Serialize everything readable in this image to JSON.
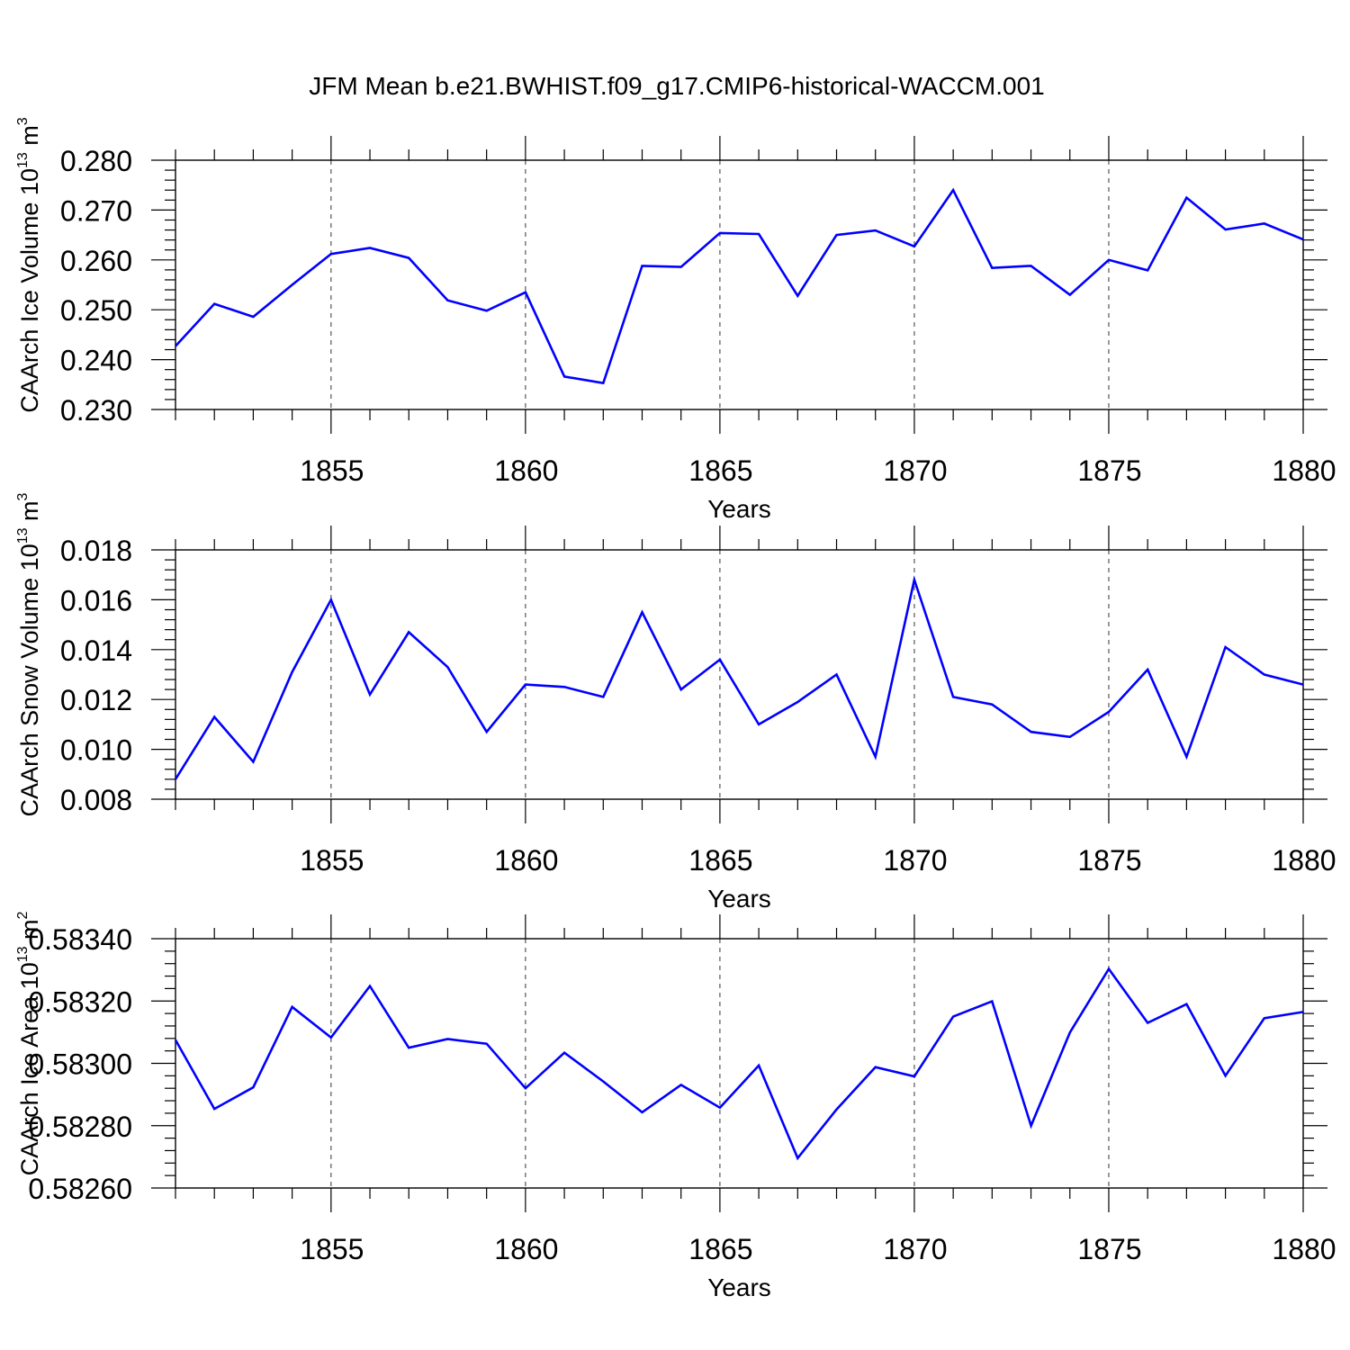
{
  "chart_data": {
    "title": "JFM Mean b.e21.BWHIST.f09_g17.CMIP6-historical-WACCM.001",
    "panels": [
      {
        "type": "line",
        "ylabel": {
          "main": "CAArch Ice Volume 10",
          "exp": "13",
          "unit": " m",
          "unit_exp": "3"
        },
        "xlabel": "Years",
        "xlim": [
          1851,
          1880
        ],
        "ylim": [
          0.23,
          0.28
        ],
        "yticks": [
          0.23,
          0.24,
          0.25,
          0.26,
          0.27,
          0.28
        ],
        "ytick_labels": [
          "0.230",
          "0.240",
          "0.250",
          "0.260",
          "0.270",
          "0.280"
        ],
        "y_minor_step": 0.002,
        "xticks": [
          1855,
          1860,
          1865,
          1870,
          1875,
          1880
        ],
        "xtick_labels": [
          "1855",
          "1860",
          "1865",
          "1870",
          "1875",
          "1880"
        ],
        "grid": "vertical dashed at major x ticks",
        "series": [
          {
            "name": "CAArch Ice Volume",
            "color": "#0000ff",
            "x": [
              1851,
              1852,
              1853,
              1854,
              1855,
              1856,
              1857,
              1858,
              1859,
              1860,
              1861,
              1862,
              1863,
              1864,
              1865,
              1866,
              1867,
              1868,
              1869,
              1870,
              1871,
              1872,
              1873,
              1874,
              1875,
              1876,
              1877,
              1878,
              1879,
              1880
            ],
            "y": [
              0.2427,
              0.2512,
              0.2486,
              0.255,
              0.2612,
              0.2624,
              0.2604,
              0.2519,
              0.2498,
              0.2535,
              0.2366,
              0.2353,
              0.2588,
              0.2586,
              0.2654,
              0.2652,
              0.2528,
              0.265,
              0.2659,
              0.2627,
              0.274,
              0.2584,
              0.2588,
              0.253,
              0.26,
              0.2579,
              0.2725,
              0.2661,
              0.2673,
              0.2641
            ]
          }
        ]
      },
      {
        "type": "line",
        "ylabel": {
          "main": "CAArch Snow Volume 10",
          "exp": "13",
          "unit": " m",
          "unit_exp": "3"
        },
        "xlabel": "Years",
        "xlim": [
          1851,
          1880
        ],
        "ylim": [
          0.008,
          0.018
        ],
        "yticks": [
          0.008,
          0.01,
          0.012,
          0.014,
          0.016,
          0.018
        ],
        "ytick_labels": [
          "0.008",
          "0.010",
          "0.012",
          "0.014",
          "0.016",
          "0.018"
        ],
        "y_minor_step": 0.0004,
        "xticks": [
          1855,
          1860,
          1865,
          1870,
          1875,
          1880
        ],
        "xtick_labels": [
          "1855",
          "1860",
          "1865",
          "1870",
          "1875",
          "1880"
        ],
        "grid": "vertical dashed at major x ticks",
        "series": [
          {
            "name": "CAArch Snow Volume",
            "color": "#0000ff",
            "x": [
              1851,
              1852,
              1853,
              1854,
              1855,
              1856,
              1857,
              1858,
              1859,
              1860,
              1861,
              1862,
              1863,
              1864,
              1865,
              1866,
              1867,
              1868,
              1869,
              1870,
              1871,
              1872,
              1873,
              1874,
              1875,
              1876,
              1877,
              1878,
              1879,
              1880
            ],
            "y": [
              0.0088,
              0.0113,
              0.0095,
              0.0131,
              0.016,
              0.0122,
              0.0147,
              0.0133,
              0.0107,
              0.0126,
              0.0125,
              0.0121,
              0.0155,
              0.0124,
              0.0136,
              0.011,
              0.0119,
              0.013,
              0.0097,
              0.0168,
              0.0121,
              0.0118,
              0.0107,
              0.0105,
              0.0115,
              0.0132,
              0.0097,
              0.0141,
              0.013,
              0.0126
            ]
          }
        ]
      },
      {
        "type": "line",
        "ylabel": {
          "main": "CAArch Ice Area 10",
          "exp": "13",
          "unit": " m",
          "unit_exp": "2"
        },
        "xlabel": "Years",
        "xlim": [
          1851,
          1880
        ],
        "ylim": [
          0.5826,
          0.5834
        ],
        "yticks": [
          0.5826,
          0.5828,
          0.583,
          0.5832,
          0.5834
        ],
        "ytick_labels": [
          "0.58260",
          "0.58280",
          "0.58300",
          "0.58320",
          "0.58340"
        ],
        "y_minor_step": 4e-05,
        "xticks": [
          1855,
          1860,
          1865,
          1870,
          1875,
          1880
        ],
        "xtick_labels": [
          "1855",
          "1860",
          "1865",
          "1870",
          "1875",
          "1880"
        ],
        "grid": "vertical dashed at major x ticks",
        "series": [
          {
            "name": "CAArch Ice Area",
            "color": "#0000ff",
            "x": [
              1851,
              1852,
              1853,
              1854,
              1855,
              1856,
              1857,
              1858,
              1859,
              1860,
              1861,
              1862,
              1863,
              1864,
              1865,
              1866,
              1867,
              1868,
              1869,
              1870,
              1871,
              1872,
              1873,
              1874,
              1875,
              1876,
              1877,
              1878,
              1879,
              1880
            ],
            "y": [
              0.583075,
              0.582854,
              0.582923,
              0.583181,
              0.583083,
              0.583248,
              0.58305,
              0.583078,
              0.583063,
              0.58292,
              0.583034,
              0.582942,
              0.582843,
              0.582931,
              0.582858,
              0.582993,
              0.582696,
              0.582852,
              0.582988,
              0.582958,
              0.58315,
              0.583199,
              0.5828,
              0.583099,
              0.583303,
              0.58313,
              0.58319,
              0.58296,
              0.583145,
              0.583165
            ]
          }
        ]
      }
    ]
  }
}
